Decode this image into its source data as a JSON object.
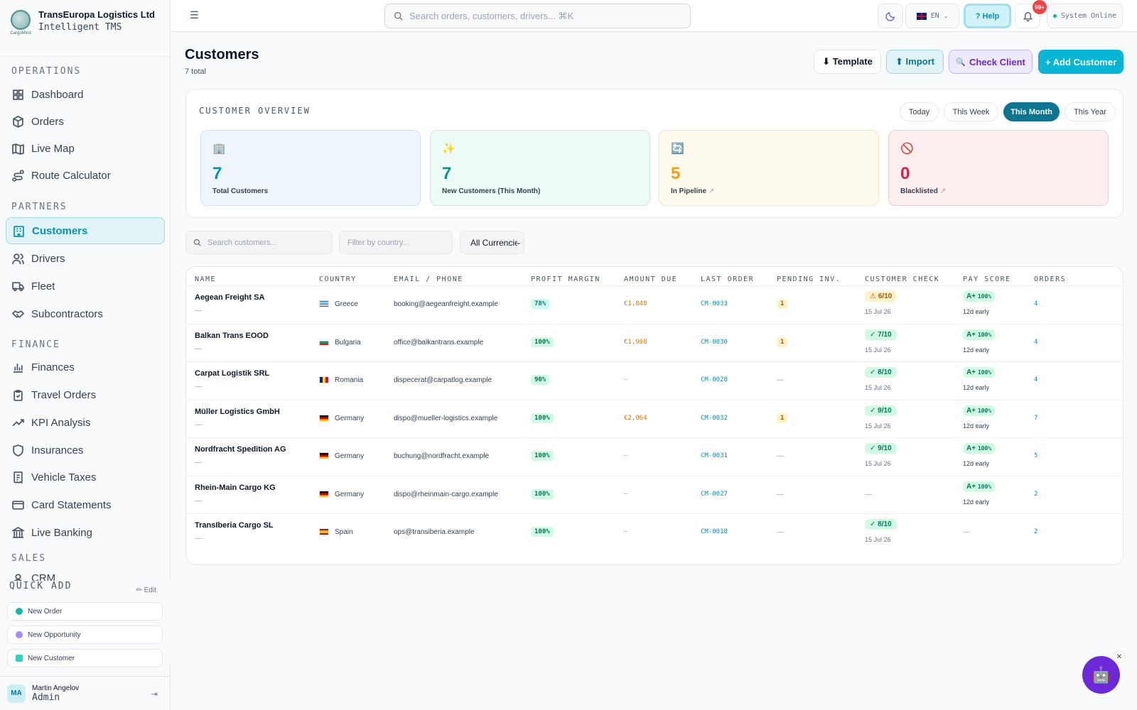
{
  "brand": {
    "name": "TransEuropa Logistics Ltd",
    "subtitle": "Intelligent TMS",
    "logo_text": "CargoMind"
  },
  "sidebar": {
    "sections": [
      {
        "label": "OPERATIONS"
      },
      {
        "label": "PARTNERS"
      },
      {
        "label": "FINANCE"
      },
      {
        "label": "SALES"
      }
    ],
    "items": [
      {
        "label": "Dashboard"
      },
      {
        "label": "Orders"
      },
      {
        "label": "Live Map"
      },
      {
        "label": "Route Calculator"
      },
      {
        "label": "Customers",
        "active": true
      },
      {
        "label": "Drivers"
      },
      {
        "label": "Fleet"
      },
      {
        "label": "Subcontractors"
      },
      {
        "label": "Finances"
      },
      {
        "label": "Travel Orders"
      },
      {
        "label": "KPI Analysis"
      },
      {
        "label": "Insurances"
      },
      {
        "label": "Vehicle Taxes"
      },
      {
        "label": "Card Statements"
      },
      {
        "label": "Live Banking"
      },
      {
        "label": "CRM"
      }
    ]
  },
  "quick_add": {
    "title": "QUICK ADD",
    "edit": "✏ Edit",
    "items": [
      "New Order",
      "New Opportunity",
      "New Customer"
    ]
  },
  "user": {
    "initials": "MA",
    "name": "Martin Angelov",
    "role": "Admin"
  },
  "topbar": {
    "search_placeholder": "Search orders, customers, drivers... ⌘K",
    "lang": "EN",
    "help": "? Help",
    "notif_badge": "99+",
    "status": "System Online"
  },
  "page": {
    "title": "Customers",
    "count": "7 total"
  },
  "actions": {
    "template": "⬇ Template",
    "import": "⬆ Import",
    "check_client": "Check Client",
    "add_customer": "+ Add Customer"
  },
  "overview": {
    "title": "CUSTOMER OVERVIEW",
    "periods": [
      "Today",
      "This Week",
      "This Month",
      "This Year"
    ],
    "active_period": "This Month",
    "cards": [
      {
        "icon": "🏢",
        "value": "7",
        "label": "Total Customers"
      },
      {
        "icon": "✨",
        "value": "7",
        "label": "New Customers (This Month)"
      },
      {
        "icon": "🔄",
        "value": "5",
        "label": "In Pipeline"
      },
      {
        "icon": "🚫",
        "value": "0",
        "label": "Blacklisted"
      }
    ]
  },
  "filters": {
    "search_placeholder": "Search customers...",
    "country_placeholder": "Filter by country...",
    "currency": "All Currencies"
  },
  "table": {
    "headers": [
      "NAME",
      "COUNTRY",
      "EMAIL / PHONE",
      "PROFIT MARGIN",
      "AMOUNT DUE",
      "LAST ORDER",
      "PENDING INV.",
      "CUSTOMER CHECK",
      "PAY SCORE",
      "ORDERS"
    ],
    "rows": [
      {
        "name": "Aegean Freight SA",
        "sub": "—",
        "country": "Greece",
        "email": "booking@aegeanfreight.example",
        "margin": "78%",
        "due": "€1,848",
        "last": "CM-0033",
        "pending": "1",
        "check": "⚠ 6/10",
        "check_date": "15 Jul 26",
        "grade": "A+",
        "score": "100%",
        "pay_note": "12d early",
        "orders": "4"
      },
      {
        "name": "Balkan Trans EOOD",
        "sub": "—",
        "country": "Bulgaria",
        "email": "office@balkantrans.example",
        "margin": "100%",
        "due": "€1,908",
        "last": "CM-0030",
        "pending": "1",
        "check": "✓ 7/10",
        "check_date": "15 Jul 26",
        "grade": "A+",
        "score": "100%",
        "pay_note": "12d early",
        "orders": "4"
      },
      {
        "name": "Carpat Logistik SRL",
        "sub": "—",
        "country": "Romania",
        "email": "dispecerat@carpatlog.example",
        "margin": "90%",
        "due": "—",
        "last": "CM-0028",
        "pending": "—",
        "check": "✓ 8/10",
        "check_date": "15 Jul 26",
        "grade": "A+",
        "score": "100%",
        "pay_note": "12d early",
        "orders": "4"
      },
      {
        "name": "Müller Logistics GmbH",
        "sub": "—",
        "country": "Germany",
        "email": "dispo@mueller-logistics.example",
        "margin": "100%",
        "due": "€2,064",
        "last": "CM-0032",
        "pending": "1",
        "check": "✓ 9/10",
        "check_date": "15 Jul 26",
        "grade": "A+",
        "score": "100%",
        "pay_note": "12d early",
        "orders": "7"
      },
      {
        "name": "Nordfracht Spedition AG",
        "sub": "—",
        "country": "Germany",
        "email": "buchung@nordfracht.example",
        "margin": "100%",
        "due": "—",
        "last": "CM-0031",
        "pending": "—",
        "check": "✓ 9/10",
        "check_date": "15 Jul 26",
        "grade": "A+",
        "score": "100%",
        "pay_note": "12d early",
        "orders": "5"
      },
      {
        "name": "Rhein-Main Cargo KG",
        "sub": "—",
        "country": "Germany",
        "email": "dispo@rheinmain-cargo.example",
        "margin": "100%",
        "due": "—",
        "last": "CM-0027",
        "pending": "—",
        "check": "—",
        "check_date": "",
        "grade": "A+",
        "score": "100%",
        "pay_note": "12d early",
        "orders": "2"
      },
      {
        "name": "TransIberia Cargo SL",
        "sub": "—",
        "country": "Spain",
        "email": "ops@transiberia.example",
        "margin": "100%",
        "due": "—",
        "last": "CM-0018",
        "pending": "—",
        "check": "✓ 8/10",
        "check_date": "15 Jul 26",
        "grade": "",
        "score": "",
        "pay_note": "—",
        "orders": "2"
      }
    ]
  }
}
